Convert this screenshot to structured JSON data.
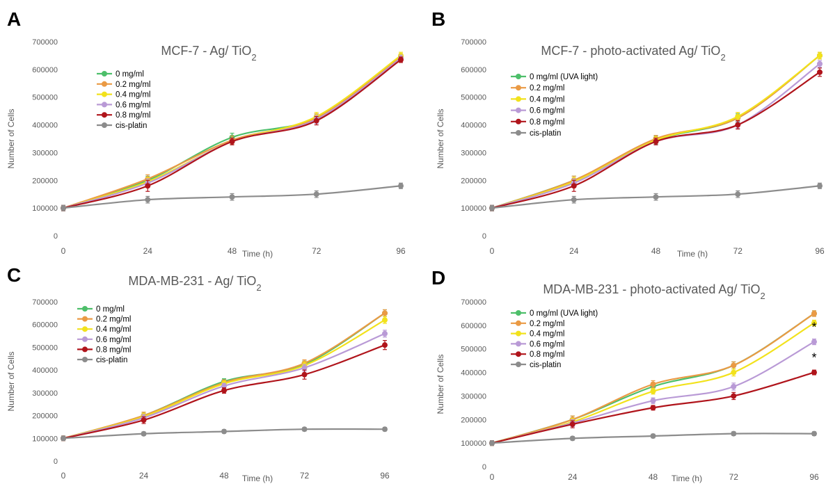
{
  "colors": {
    "0 mg/ml": "#4dbf6a",
    "0.2 mg/ml": "#ea9a44",
    "0.4 mg/ml": "#f2e21c",
    "0.6 mg/ml": "#b99ad6",
    "0.8 mg/ml": "#b0141b",
    "cis-platin": "#8c8c8c",
    "axis_text": "#595959",
    "title_text": "#595959"
  },
  "chart_data": [
    {
      "panel": "A",
      "type": "line",
      "title": "MCF-7 - Ag/ TiO",
      "title_sub": "2",
      "xlabel": "Time (h)",
      "ylabel": "Number of Cells",
      "x": [
        0,
        24,
        48,
        72,
        96
      ],
      "xticks": [
        "0",
        "24",
        "48",
        "72",
        "96"
      ],
      "yticks": [
        "0",
        "100000",
        "200000",
        "300000",
        "400000",
        "500000",
        "600000",
        "700000"
      ],
      "ylim": [
        0,
        700000
      ],
      "legend_position": "top-left",
      "series": [
        {
          "name": "0 mg/ml",
          "color_key": "0 mg/ml",
          "values": [
            100000,
            200000,
            355000,
            425000,
            645000
          ],
          "err": [
            10000,
            15000,
            15000,
            15000,
            12000
          ]
        },
        {
          "name": "0.2 mg/ml",
          "color_key": "0.2 mg/ml",
          "values": [
            100000,
            205000,
            345000,
            425000,
            645000
          ],
          "err": [
            10000,
            15000,
            15000,
            15000,
            12000
          ]
        },
        {
          "name": "0.4 mg/ml",
          "color_key": "0.4 mg/ml",
          "values": [
            100000,
            195000,
            340000,
            430000,
            650000
          ],
          "err": [
            10000,
            15000,
            12000,
            15000,
            12000
          ]
        },
        {
          "name": "0.6 mg/ml",
          "color_key": "0.6 mg/ml",
          "values": [
            100000,
            190000,
            340000,
            420000,
            640000
          ],
          "err": [
            10000,
            15000,
            12000,
            15000,
            12000
          ]
        },
        {
          "name": "0.8 mg/ml",
          "color_key": "0.8 mg/ml",
          "values": [
            100000,
            180000,
            340000,
            415000,
            635000
          ],
          "err": [
            10000,
            20000,
            12000,
            15000,
            10000
          ]
        },
        {
          "name": "cis-platin",
          "color_key": "cis-platin",
          "values": [
            100000,
            130000,
            140000,
            150000,
            180000
          ],
          "err": [
            10000,
            12000,
            12000,
            12000,
            10000
          ]
        }
      ],
      "annotations": []
    },
    {
      "panel": "B",
      "type": "line",
      "title": "MCF-7 - photo-activated Ag/ TiO",
      "title_sub": "2",
      "xlabel": "Time (h)",
      "ylabel": "Number of Cells",
      "x": [
        0,
        24,
        48,
        72,
        96
      ],
      "xticks": [
        "0",
        "24",
        "48",
        "72",
        "96"
      ],
      "yticks": [
        "0",
        "100000",
        "200000",
        "300000",
        "400000",
        "500000",
        "600000",
        "700000"
      ],
      "ylim": [
        0,
        700000
      ],
      "legend_position": "top-left",
      "series": [
        {
          "name": "0 mg/ml (UVA light)",
          "color_key": "0 mg/ml",
          "values": [
            100000,
            200000,
            345000,
            425000,
            650000
          ],
          "err": [
            10000,
            15000,
            15000,
            15000,
            12000
          ]
        },
        {
          "name": "0.2 mg/ml",
          "color_key": "0.2 mg/ml",
          "values": [
            100000,
            200000,
            350000,
            425000,
            650000
          ],
          "err": [
            10000,
            15000,
            12000,
            20000,
            12000
          ]
        },
        {
          "name": "0.4 mg/ml",
          "color_key": "0.4 mg/ml",
          "values": [
            100000,
            195000,
            345000,
            430000,
            650000
          ],
          "err": [
            10000,
            15000,
            12000,
            15000,
            12000
          ]
        },
        {
          "name": "0.6 mg/ml",
          "color_key": "0.6 mg/ml",
          "values": [
            100000,
            190000,
            340000,
            400000,
            620000
          ],
          "err": [
            10000,
            15000,
            12000,
            12000,
            12000
          ]
        },
        {
          "name": "0.8 mg/ml",
          "color_key": "0.8 mg/ml",
          "values": [
            100000,
            180000,
            340000,
            400000,
            590000
          ],
          "err": [
            10000,
            20000,
            12000,
            15000,
            15000
          ]
        },
        {
          "name": "cis-platin",
          "color_key": "cis-platin",
          "values": [
            100000,
            130000,
            140000,
            150000,
            180000
          ],
          "err": [
            10000,
            12000,
            12000,
            12000,
            10000
          ]
        }
      ],
      "annotations": []
    },
    {
      "panel": "C",
      "type": "line",
      "title": "MDA-MB-231 - Ag/ TiO",
      "title_sub": "2",
      "xlabel": "Time (h)",
      "ylabel": "Number of Cells",
      "x": [
        0,
        24,
        48,
        72,
        96
      ],
      "xticks": [
        "0",
        "24",
        "48",
        "72",
        "96"
      ],
      "yticks": [
        "0",
        "100000",
        "200000",
        "300000",
        "400000",
        "500000",
        "600000",
        "700000"
      ],
      "ylim": [
        0,
        700000
      ],
      "legend_position": "top-left",
      "series": [
        {
          "name": "0 mg/ml",
          "color_key": "0 mg/ml",
          "values": [
            100000,
            200000,
            350000,
            425000,
            650000
          ],
          "err": [
            10000,
            15000,
            12000,
            15000,
            15000
          ]
        },
        {
          "name": "0.2 mg/ml",
          "color_key": "0.2 mg/ml",
          "values": [
            100000,
            200000,
            345000,
            430000,
            650000
          ],
          "err": [
            10000,
            15000,
            12000,
            15000,
            15000
          ]
        },
        {
          "name": "0.4 mg/ml",
          "color_key": "0.4 mg/ml",
          "values": [
            100000,
            195000,
            340000,
            420000,
            620000
          ],
          "err": [
            10000,
            15000,
            12000,
            15000,
            15000
          ]
        },
        {
          "name": "0.6 mg/ml",
          "color_key": "0.6 mg/ml",
          "values": [
            100000,
            190000,
            330000,
            410000,
            560000
          ],
          "err": [
            10000,
            15000,
            12000,
            15000,
            15000
          ]
        },
        {
          "name": "0.8 mg/ml",
          "color_key": "0.8 mg/ml",
          "values": [
            100000,
            180000,
            310000,
            380000,
            510000
          ],
          "err": [
            10000,
            15000,
            12000,
            20000,
            20000
          ]
        },
        {
          "name": "cis-platin",
          "color_key": "cis-platin",
          "values": [
            100000,
            120000,
            130000,
            140000,
            140000
          ],
          "err": [
            10000,
            8000,
            8000,
            8000,
            8000
          ]
        }
      ],
      "annotations": []
    },
    {
      "panel": "D",
      "type": "line",
      "title": "MDA-MB-231 - photo-activated Ag/ TiO",
      "title_sub": "2",
      "xlabel": "Time (h)",
      "ylabel": "Number of Cells",
      "x": [
        0,
        24,
        48,
        72,
        96
      ],
      "xticks": [
        "0",
        "24",
        "48",
        "72",
        "96"
      ],
      "yticks": [
        "0",
        "100000",
        "200000",
        "300000",
        "400000",
        "500000",
        "600000",
        "700000"
      ],
      "ylim": [
        0,
        700000
      ],
      "legend_position": "top-left",
      "series": [
        {
          "name": "0 mg/ml (UVA light)",
          "color_key": "0 mg/ml",
          "values": [
            100000,
            200000,
            340000,
            430000,
            650000
          ],
          "err": [
            10000,
            15000,
            12000,
            15000,
            12000
          ]
        },
        {
          "name": "0.2 mg/ml",
          "color_key": "0.2 mg/ml",
          "values": [
            100000,
            200000,
            350000,
            430000,
            650000
          ],
          "err": [
            10000,
            15000,
            15000,
            15000,
            12000
          ]
        },
        {
          "name": "0.4 mg/ml",
          "color_key": "0.4 mg/ml",
          "values": [
            100000,
            190000,
            320000,
            400000,
            610000
          ],
          "err": [
            10000,
            15000,
            12000,
            15000,
            12000
          ]
        },
        {
          "name": "0.6 mg/ml",
          "color_key": "0.6 mg/ml",
          "values": [
            100000,
            185000,
            280000,
            340000,
            530000
          ],
          "err": [
            10000,
            15000,
            12000,
            15000,
            12000
          ]
        },
        {
          "name": "0.8 mg/ml",
          "color_key": "0.8 mg/ml",
          "values": [
            100000,
            180000,
            250000,
            300000,
            400000
          ],
          "err": [
            10000,
            15000,
            10000,
            15000,
            10000
          ]
        },
        {
          "name": "cis-platin",
          "color_key": "cis-platin",
          "values": [
            100000,
            120000,
            130000,
            140000,
            140000
          ],
          "err": [
            10000,
            8000,
            8000,
            8000,
            8000
          ]
        }
      ],
      "annotations": [
        {
          "text": "*",
          "x": 96,
          "y": 575000
        },
        {
          "text": "*",
          "x": 96,
          "y": 445000
        }
      ]
    }
  ]
}
